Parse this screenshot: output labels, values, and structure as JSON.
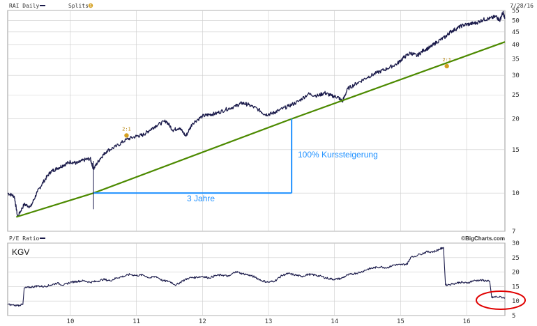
{
  "colors": {
    "price": "#1a1a4a",
    "trend": "#4c8a00",
    "annotation": "#1e90ff",
    "grid": "#cccccc",
    "highlight": "#e00000",
    "split_marker": "#d4a020"
  },
  "header": {
    "ticker_label": "RAI Daily",
    "splits_label": "Splits",
    "splits_icon": "S",
    "date": "7/28/16"
  },
  "lower_header": {
    "pe_label": "P/E Ratio",
    "brand": "©BigCharts.com",
    "kgv_label": "KGV"
  },
  "annotations": {
    "growth_label": "100% Kurssteigerung",
    "years_label": "3 Jahre"
  },
  "splits": [
    {
      "label": "2:1",
      "x": 10.85,
      "y": 17.8
    },
    {
      "label": "2:1",
      "x": 15.7,
      "y": 34
    }
  ],
  "chart_data": [
    {
      "type": "line",
      "title": "RAI Daily",
      "scale": "log",
      "xlim": [
        9.05,
        16.58
      ],
      "ylim": [
        7,
        55
      ],
      "x_ticks": [],
      "y_ticks": [
        7,
        10,
        15,
        20,
        25,
        30,
        35,
        40,
        45,
        50,
        55
      ],
      "grid": true,
      "series": [
        {
          "values": [
            [
              9.05,
              10.0
            ],
            [
              9.15,
              9.7
            ],
            [
              9.2,
              8.0
            ],
            [
              9.3,
              9.0
            ],
            [
              9.4,
              8.8
            ],
            [
              9.5,
              10.1
            ],
            [
              9.6,
              11.2
            ],
            [
              9.7,
              12.2
            ],
            [
              9.8,
              12.6
            ],
            [
              9.9,
              13.0
            ],
            [
              10.0,
              13.4
            ],
            [
              10.1,
              13.2
            ],
            [
              10.2,
              13.6
            ],
            [
              10.3,
              13.8
            ],
            [
              10.35,
              12.5
            ],
            [
              10.45,
              13.8
            ],
            [
              10.55,
              14.8
            ],
            [
              10.7,
              15.5
            ],
            [
              10.85,
              16.5
            ],
            [
              11.0,
              17.0
            ],
            [
              11.1,
              17.2
            ],
            [
              11.2,
              18.0
            ],
            [
              11.3,
              18.8
            ],
            [
              11.45,
              19.6
            ],
            [
              11.55,
              18.0
            ],
            [
              11.65,
              18.4
            ],
            [
              11.75,
              17.0
            ],
            [
              11.85,
              19.2
            ],
            [
              12.0,
              20.5
            ],
            [
              12.1,
              20.8
            ],
            [
              12.2,
              21.0
            ],
            [
              12.35,
              21.8
            ],
            [
              12.5,
              22.5
            ],
            [
              12.6,
              23.2
            ],
            [
              12.7,
              22.8
            ],
            [
              12.85,
              21.8
            ],
            [
              12.95,
              20.8
            ],
            [
              13.05,
              21.0
            ],
            [
              13.15,
              21.6
            ],
            [
              13.3,
              22.5
            ],
            [
              13.45,
              23.5
            ],
            [
              13.6,
              25.2
            ],
            [
              13.75,
              24.8
            ],
            [
              13.85,
              25.5
            ],
            [
              13.95,
              24.8
            ],
            [
              14.05,
              24.5
            ],
            [
              14.12,
              23.5
            ],
            [
              14.2,
              26.5
            ],
            [
              14.35,
              28.0
            ],
            [
              14.5,
              29.5
            ],
            [
              14.65,
              30.8
            ],
            [
              14.8,
              32.0
            ],
            [
              14.95,
              33.5
            ],
            [
              15.05,
              35.5
            ],
            [
              15.15,
              37.0
            ],
            [
              15.25,
              36.0
            ],
            [
              15.35,
              38.0
            ],
            [
              15.45,
              39.0
            ],
            [
              15.55,
              41.0
            ],
            [
              15.68,
              43.0
            ],
            [
              15.75,
              45.0
            ],
            [
              15.85,
              46.5
            ],
            [
              15.95,
              48.0
            ],
            [
              16.05,
              48.5
            ],
            [
              16.15,
              49.0
            ],
            [
              16.25,
              50.5
            ],
            [
              16.35,
              51.0
            ],
            [
              16.45,
              52.0
            ],
            [
              16.5,
              50.0
            ],
            [
              16.55,
              54.0
            ],
            [
              16.58,
              51.0
            ]
          ]
        },
        {
          "values": [
            [
              9.18,
              8.0
            ],
            [
              10.35,
              10.0
            ],
            [
              13.35,
              20.0
            ],
            [
              16.58,
              41.0
            ]
          ]
        }
      ]
    },
    {
      "type": "line",
      "title": "P/E Ratio",
      "xlim": [
        9.05,
        16.58
      ],
      "ylim": [
        5,
        30
      ],
      "x_ticks": [
        10,
        11,
        12,
        13,
        14,
        15,
        16
      ],
      "y_ticks": [
        5,
        10,
        15,
        20,
        25,
        30
      ],
      "grid": true,
      "series": [
        {
          "values": [
            [
              9.05,
              8.8
            ],
            [
              9.2,
              8.5
            ],
            [
              9.28,
              8.8
            ],
            [
              9.3,
              14.5
            ],
            [
              9.4,
              14.8
            ],
            [
              9.5,
              15.2
            ],
            [
              9.6,
              15.0
            ],
            [
              9.7,
              15.5
            ],
            [
              9.8,
              16.2
            ],
            [
              9.9,
              15.5
            ],
            [
              10.0,
              16.5
            ],
            [
              10.1,
              16.8
            ],
            [
              10.2,
              17.0
            ],
            [
              10.3,
              16.5
            ],
            [
              10.4,
              16.8
            ],
            [
              10.5,
              17.5
            ],
            [
              10.6,
              17.0
            ],
            [
              10.7,
              18.0
            ],
            [
              10.8,
              18.5
            ],
            [
              10.9,
              19.2
            ],
            [
              11.0,
              18.8
            ],
            [
              11.1,
              19.0
            ],
            [
              11.2,
              18.0
            ],
            [
              11.3,
              18.5
            ],
            [
              11.4,
              17.0
            ],
            [
              11.5,
              16.8
            ],
            [
              11.6,
              15.5
            ],
            [
              11.7,
              17.0
            ],
            [
              11.8,
              18.0
            ],
            [
              11.9,
              18.2
            ],
            [
              12.0,
              18.5
            ],
            [
              12.1,
              18.0
            ],
            [
              12.2,
              18.8
            ],
            [
              12.3,
              19.0
            ],
            [
              12.4,
              18.5
            ],
            [
              12.5,
              20.2
            ],
            [
              12.6,
              19.5
            ],
            [
              12.7,
              19.0
            ],
            [
              12.8,
              18.2
            ],
            [
              12.9,
              17.0
            ],
            [
              13.0,
              16.5
            ],
            [
              13.1,
              17.0
            ],
            [
              13.2,
              18.8
            ],
            [
              13.3,
              19.5
            ],
            [
              13.4,
              19.0
            ],
            [
              13.5,
              18.5
            ],
            [
              13.6,
              19.2
            ],
            [
              13.7,
              19.0
            ],
            [
              13.8,
              18.5
            ],
            [
              13.9,
              17.8
            ],
            [
              14.0,
              17.5
            ],
            [
              14.1,
              17.8
            ],
            [
              14.2,
              19.0
            ],
            [
              14.3,
              19.5
            ],
            [
              14.4,
              20.0
            ],
            [
              14.5,
              21.0
            ],
            [
              14.6,
              21.5
            ],
            [
              14.7,
              21.8
            ],
            [
              14.8,
              21.5
            ],
            [
              14.9,
              22.5
            ],
            [
              15.0,
              22.5
            ],
            [
              15.1,
              22.8
            ],
            [
              15.15,
              25.0
            ],
            [
              15.3,
              26.2
            ],
            [
              15.4,
              27.0
            ],
            [
              15.5,
              27.0
            ],
            [
              15.6,
              28.0
            ],
            [
              15.65,
              28.5
            ],
            [
              15.68,
              15.5
            ],
            [
              15.8,
              16.0
            ],
            [
              15.9,
              16.5
            ],
            [
              16.0,
              16.2
            ],
            [
              16.1,
              17.0
            ],
            [
              16.2,
              17.2
            ],
            [
              16.3,
              17.0
            ],
            [
              16.35,
              16.8
            ],
            [
              16.38,
              11.2
            ],
            [
              16.45,
              11.5
            ],
            [
              16.58,
              11.2
            ]
          ]
        }
      ]
    }
  ]
}
